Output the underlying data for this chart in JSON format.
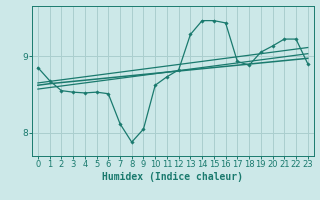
{
  "background_color": "#cce8e8",
  "grid_color": "#aacece",
  "line_color": "#1a7a6e",
  "xlabel": "Humidex (Indice chaleur)",
  "xlabel_fontsize": 7,
  "ylim": [
    7.7,
    9.65
  ],
  "xlim": [
    -0.5,
    23.5
  ],
  "x_values": [
    0,
    1,
    2,
    3,
    4,
    5,
    6,
    7,
    8,
    9,
    10,
    11,
    12,
    13,
    14,
    15,
    16,
    17,
    18,
    19,
    20,
    21,
    22,
    23
  ],
  "line1_y": [
    8.85,
    8.68,
    8.55,
    8.53,
    8.52,
    8.53,
    8.51,
    8.12,
    7.88,
    8.05,
    8.62,
    8.73,
    8.82,
    9.28,
    9.46,
    9.46,
    9.43,
    8.93,
    8.88,
    9.05,
    9.13,
    9.22,
    9.22,
    8.9
  ],
  "line2_y": [
    8.65,
    8.67,
    8.69,
    8.71,
    8.73,
    8.75,
    8.77,
    8.79,
    8.81,
    8.83,
    8.85,
    8.87,
    8.89,
    8.91,
    8.93,
    8.95,
    8.97,
    8.99,
    9.01,
    9.03,
    9.05,
    9.07,
    9.09,
    9.11
  ],
  "line3_y": [
    8.62,
    8.64,
    8.655,
    8.67,
    8.685,
    8.7,
    8.715,
    8.73,
    8.745,
    8.76,
    8.775,
    8.79,
    8.805,
    8.82,
    8.835,
    8.85,
    8.865,
    8.88,
    8.895,
    8.91,
    8.925,
    8.94,
    8.955,
    8.97
  ],
  "line4_y": [
    8.57,
    8.59,
    8.61,
    8.63,
    8.65,
    8.67,
    8.69,
    8.71,
    8.73,
    8.75,
    8.77,
    8.79,
    8.81,
    8.83,
    8.85,
    8.87,
    8.89,
    8.91,
    8.93,
    8.95,
    8.97,
    8.99,
    9.01,
    9.03
  ],
  "tick_fontsize": 6
}
